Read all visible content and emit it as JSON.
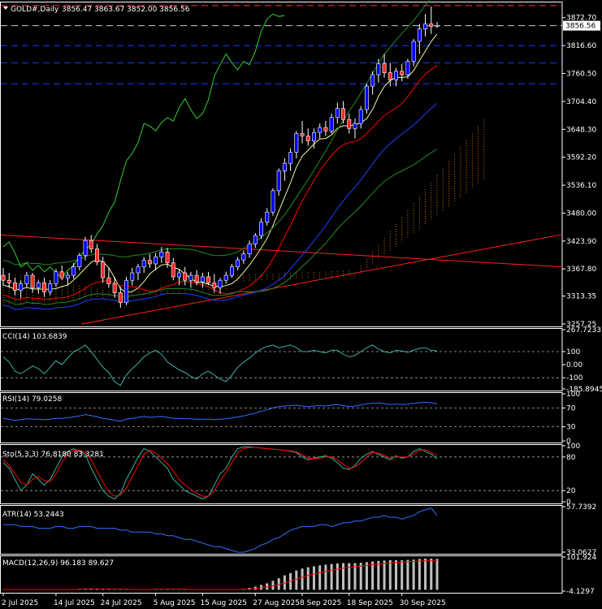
{
  "header": {
    "symbol": "GOLD#,Daily",
    "ohlc": "3856.47 3863.67 3852.00 3856.56"
  },
  "colors": {
    "bull": "#ffffff",
    "bear": "#ff2a2a",
    "bullBody": "#0000ff",
    "grid": "#ffffff",
    "bbLine": "#32cd32",
    "maRed": "#ff0000",
    "maBlue": "#1e40ff",
    "maYellow": "#f5f5a0",
    "cci": "#3cb0a0",
    "rsi": "#3070ff",
    "stoMain": "#3cb0a0",
    "stoSignal": "#ff0000",
    "atr": "#3070ff",
    "macdHist": "#c0c0c0",
    "macdSignal": "#ff0000",
    "hline": "#ff3333",
    "hlineBlue": "#1a3cff"
  },
  "chart_data": [
    {
      "type": "candlestick",
      "title": "GOLD#,Daily",
      "ylim": [
        3257.25,
        3900
      ],
      "yticks": [
        "3872.70",
        "3816.60",
        "3760.50",
        "3704.40",
        "3648.30",
        "3592.20",
        "3536.10",
        "3480.00",
        "3423.90",
        "3367.80",
        "3313.35",
        "3257.25"
      ],
      "last_price": "3856.56",
      "xticks": [
        "2 Jul 2025",
        "14 Jul 2025",
        "24 Jul 2025",
        "5 Aug 2025",
        "15 Aug 2025",
        "27 Aug 2025",
        "8 Sep 2025",
        "18 Sep 2025",
        "30 Sep 2025"
      ],
      "ohlc": [
        [
          3355,
          3370,
          3335,
          3345
        ],
        [
          3345,
          3360,
          3330,
          3340
        ],
        [
          3340,
          3350,
          3315,
          3325
        ],
        [
          3325,
          3345,
          3310,
          3338
        ],
        [
          3338,
          3362,
          3330,
          3355
        ],
        [
          3355,
          3360,
          3320,
          3330
        ],
        [
          3330,
          3345,
          3318,
          3340
        ],
        [
          3340,
          3350,
          3312,
          3322
        ],
        [
          3322,
          3345,
          3315,
          3338
        ],
        [
          3338,
          3368,
          3332,
          3362
        ],
        [
          3362,
          3375,
          3345,
          3350
        ],
        [
          3350,
          3362,
          3335,
          3355
        ],
        [
          3355,
          3380,
          3348,
          3372
        ],
        [
          3372,
          3400,
          3365,
          3395
        ],
        [
          3395,
          3432,
          3385,
          3425
        ],
        [
          3425,
          3436,
          3400,
          3408
        ],
        [
          3408,
          3418,
          3375,
          3382
        ],
        [
          3382,
          3392,
          3340,
          3350
        ],
        [
          3350,
          3370,
          3330,
          3338
        ],
        [
          3338,
          3352,
          3310,
          3320
        ],
        [
          3320,
          3332,
          3290,
          3300
        ],
        [
          3300,
          3352,
          3295,
          3345
        ],
        [
          3345,
          3370,
          3335,
          3360
        ],
        [
          3360,
          3378,
          3345,
          3372
        ],
        [
          3372,
          3392,
          3360,
          3385
        ],
        [
          3385,
          3398,
          3370,
          3378
        ],
        [
          3378,
          3400,
          3365,
          3392
        ],
        [
          3392,
          3412,
          3380,
          3402
        ],
        [
          3402,
          3410,
          3370,
          3380
        ],
        [
          3380,
          3390,
          3345,
          3352
        ],
        [
          3352,
          3368,
          3335,
          3360
        ],
        [
          3360,
          3372,
          3335,
          3345
        ],
        [
          3345,
          3362,
          3330,
          3355
        ],
        [
          3355,
          3366,
          3335,
          3342
        ],
        [
          3342,
          3360,
          3330,
          3352
        ],
        [
          3352,
          3362,
          3335,
          3340
        ],
        [
          3340,
          3358,
          3320,
          3330
        ],
        [
          3330,
          3350,
          3318,
          3345
        ],
        [
          3345,
          3362,
          3338,
          3355
        ],
        [
          3355,
          3378,
          3350,
          3372
        ],
        [
          3372,
          3392,
          3365,
          3386
        ],
        [
          3386,
          3405,
          3378,
          3398
        ],
        [
          3398,
          3425,
          3390,
          3418
        ],
        [
          3418,
          3440,
          3410,
          3435
        ],
        [
          3435,
          3470,
          3428,
          3462
        ],
        [
          3462,
          3490,
          3455,
          3482
        ],
        [
          3482,
          3530,
          3475,
          3525
        ],
        [
          3525,
          3570,
          3515,
          3565
        ],
        [
          3565,
          3590,
          3545,
          3580
        ],
        [
          3580,
          3610,
          3565,
          3602
        ],
        [
          3602,
          3645,
          3590,
          3640
        ],
        [
          3640,
          3665,
          3620,
          3635
        ],
        [
          3635,
          3650,
          3615,
          3625
        ],
        [
          3625,
          3650,
          3610,
          3642
        ],
        [
          3642,
          3660,
          3630,
          3652
        ],
        [
          3652,
          3665,
          3635,
          3645
        ],
        [
          3645,
          3680,
          3640,
          3672
        ],
        [
          3672,
          3702,
          3660,
          3690
        ],
        [
          3690,
          3705,
          3660,
          3668
        ],
        [
          3668,
          3680,
          3640,
          3650
        ],
        [
          3650,
          3670,
          3630,
          3660
        ],
        [
          3660,
          3695,
          3650,
          3688
        ],
        [
          3688,
          3740,
          3680,
          3735
        ],
        [
          3735,
          3765,
          3718,
          3758
        ],
        [
          3758,
          3790,
          3742,
          3780
        ],
        [
          3780,
          3800,
          3752,
          3762
        ],
        [
          3762,
          3782,
          3735,
          3748
        ],
        [
          3748,
          3772,
          3735,
          3765
        ],
        [
          3765,
          3780,
          3745,
          3758
        ],
        [
          3758,
          3790,
          3750,
          3785
        ],
        [
          3785,
          3830,
          3775,
          3825
        ],
        [
          3825,
          3860,
          3800,
          3850
        ],
        [
          3850,
          3880,
          3835,
          3860
        ],
        [
          3860,
          3895,
          3840,
          3855
        ],
        [
          3856,
          3864,
          3852,
          3857
        ]
      ]
    },
    {
      "type": "line",
      "title": "CCI(14) 103.6839",
      "ylim": [
        -185.8945,
        267.7233
      ],
      "yticks": [
        "267.7233",
        "100",
        "0.00",
        "-100",
        "-185.8945"
      ],
      "values": [
        60,
        20,
        -50,
        -70,
        -40,
        -10,
        -30,
        -70,
        -20,
        30,
        0,
        50,
        100,
        120,
        150,
        100,
        40,
        -20,
        -60,
        -130,
        -160,
        -80,
        -30,
        10,
        60,
        90,
        110,
        80,
        20,
        -10,
        -40,
        -60,
        -90,
        -110,
        -70,
        -50,
        -80,
        -110,
        -130,
        -80,
        -20,
        20,
        50,
        90,
        120,
        140,
        150,
        130,
        140,
        150,
        130,
        100,
        100,
        110,
        100,
        90,
        110,
        110,
        80,
        60,
        70,
        100,
        130,
        150,
        120,
        100,
        90,
        110,
        105,
        95,
        110,
        125,
        130,
        110,
        104
      ]
    },
    {
      "type": "line",
      "title": "RSI(14) 79.0258",
      "ylim": [
        0,
        100
      ],
      "yticks": [
        "100",
        "70",
        "30",
        "0"
      ],
      "values": [
        48,
        46,
        44,
        45,
        47,
        46,
        46,
        45,
        46,
        48,
        48,
        49,
        51,
        53,
        56,
        54,
        51,
        48,
        46,
        44,
        42,
        46,
        48,
        50,
        52,
        50,
        51,
        52,
        50,
        48,
        48,
        47,
        47,
        46,
        46,
        46,
        45,
        46,
        47,
        49,
        51,
        53,
        56,
        59,
        63,
        66,
        70,
        73,
        74,
        75,
        76,
        74,
        73,
        74,
        75,
        74,
        76,
        77,
        75,
        73,
        74,
        76,
        79,
        80,
        81,
        79,
        77,
        78,
        77,
        78,
        80,
        81,
        82,
        81,
        79
      ]
    },
    {
      "type": "line",
      "title": "Sto(5,3,3) 76.8180 83.3281",
      "ylim": [
        0,
        100
      ],
      "yticks": [
        "100",
        "80",
        "20",
        "0"
      ],
      "series": [
        {
          "values": [
            70,
            60,
            40,
            20,
            30,
            50,
            40,
            30,
            40,
            60,
            80,
            90,
            95,
            90,
            85,
            60,
            40,
            20,
            10,
            5,
            15,
            40,
            60,
            80,
            95,
            90,
            80,
            70,
            60,
            40,
            30,
            20,
            15,
            10,
            5,
            10,
            30,
            50,
            60,
            80,
            95,
            98,
            98,
            97,
            96,
            95,
            94,
            93,
            92,
            90,
            88,
            80,
            75,
            78,
            80,
            82,
            78,
            70,
            60,
            58,
            65,
            78,
            85,
            90,
            85,
            80,
            75,
            82,
            78,
            80,
            90,
            95,
            90,
            85,
            77
          ]
        },
        {
          "values": [
            75,
            65,
            50,
            35,
            30,
            40,
            45,
            38,
            36,
            50,
            70,
            85,
            92,
            92,
            88,
            75,
            55,
            35,
            18,
            10,
            12,
            25,
            45,
            65,
            85,
            92,
            87,
            78,
            68,
            55,
            40,
            30,
            22,
            15,
            10,
            10,
            20,
            38,
            52,
            70,
            88,
            95,
            97,
            97,
            96,
            95,
            94,
            93,
            92,
            91,
            89,
            84,
            78,
            77,
            78,
            80,
            80,
            75,
            67,
            60,
            62,
            70,
            80,
            88,
            87,
            83,
            78,
            80,
            80,
            80,
            85,
            92,
            93,
            88,
            83
          ]
        }
      ]
    },
    {
      "type": "line",
      "title": "ATR(14) 53.2443",
      "ylim": [
        33.0627,
        57.7392
      ],
      "yticks": [
        "57.7392",
        "33.0627"
      ],
      "values": [
        48,
        48,
        48,
        47,
        47,
        47,
        46,
        46,
        46,
        47,
        47,
        46,
        46,
        47,
        47,
        47,
        46,
        46,
        46,
        46,
        45,
        45,
        44,
        44,
        44,
        44,
        43,
        43,
        42,
        42,
        41,
        40,
        40,
        39,
        38,
        37,
        36,
        36,
        35,
        34,
        33,
        33,
        34,
        35,
        37,
        38,
        40,
        41,
        43,
        45,
        46,
        47,
        47,
        47,
        48,
        48,
        47,
        48,
        49,
        49,
        50,
        50,
        51,
        52,
        52,
        53,
        52,
        52,
        51,
        52,
        53,
        55,
        56,
        57,
        53
      ]
    },
    {
      "type": "bar",
      "title": "MACD(12,26,9) 96.183 89.627",
      "ylim": [
        -4.1297,
        101.924
      ],
      "yticks": [
        "101.924",
        "-4.1297"
      ],
      "values": [
        1,
        1,
        1,
        1,
        1,
        1,
        1,
        1,
        1,
        1,
        1,
        1,
        2,
        3,
        4,
        4,
        4,
        3,
        2,
        1,
        1,
        1,
        1,
        1,
        2,
        2,
        2,
        2,
        2,
        2,
        1,
        1,
        1,
        1,
        1,
        1,
        1,
        1,
        1,
        1,
        2,
        3,
        6,
        10,
        15,
        20,
        28,
        36,
        45,
        52,
        60,
        66,
        70,
        73,
        76,
        78,
        80,
        82,
        83,
        83,
        83,
        84,
        86,
        88,
        90,
        91,
        92,
        92,
        92,
        93,
        94,
        96,
        97,
        97,
        96
      ],
      "signal": [
        1,
        1,
        1,
        1,
        1,
        1,
        1,
        1,
        1,
        1,
        1,
        1,
        1,
        2,
        2,
        3,
        3,
        3,
        3,
        2,
        2,
        2,
        1,
        1,
        1,
        1,
        2,
        2,
        2,
        2,
        2,
        2,
        1,
        1,
        1,
        1,
        1,
        1,
        1,
        1,
        1,
        2,
        3,
        4,
        6,
        9,
        12,
        16,
        21,
        27,
        33,
        39,
        44,
        49,
        53,
        57,
        61,
        64,
        67,
        70,
        72,
        74,
        76,
        78,
        80,
        82,
        83,
        85,
        86,
        87,
        88,
        89,
        90,
        90,
        90
      ]
    }
  ]
}
